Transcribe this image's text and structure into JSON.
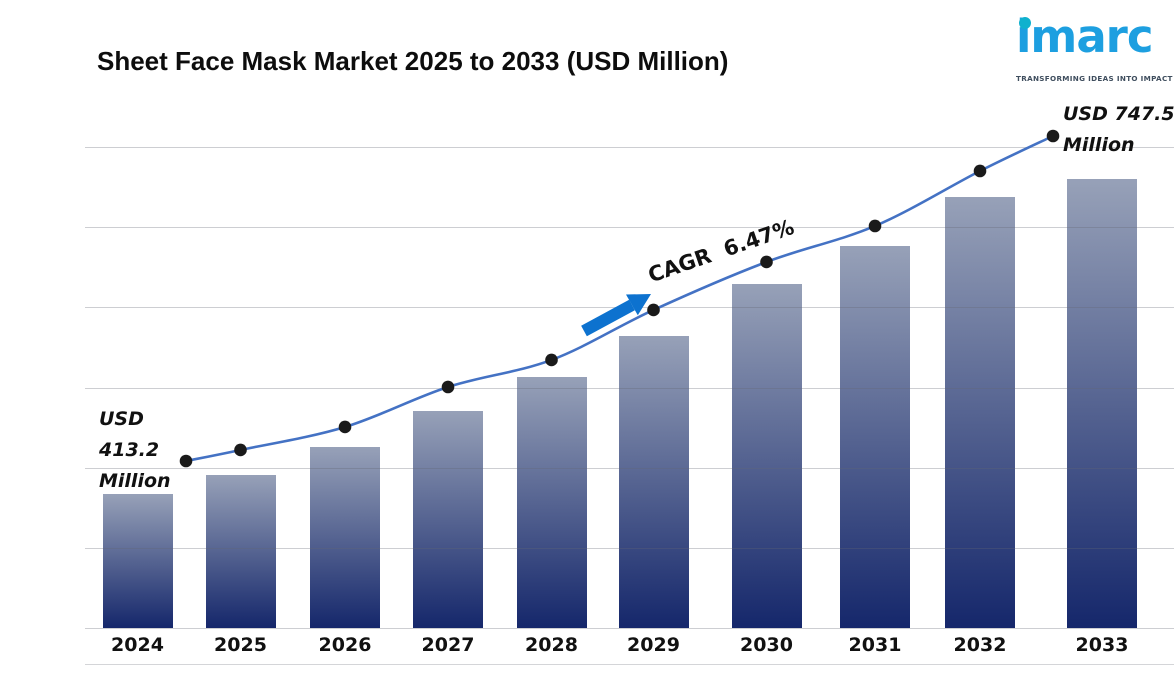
{
  "title": "Sheet Face Mask Market 2025 to 2033 (USD Million)",
  "logo": {
    "text": "imarc",
    "tagline": "TRANSFORMING IDEAS INTO IMPACT",
    "brand_color": "#1d9fe0",
    "dot_color": "#0fb1ce",
    "tagline_color": "#3f4e5e"
  },
  "annotations": {
    "start": "USD 413.2 Million",
    "end": "USD 747.5 Million",
    "cagr": "CAGR  6.47%"
  },
  "colors": {
    "bar_top": "#97a1b8",
    "bar_bottom": "#15276b",
    "line": "#4472c4",
    "marker": "#1a1a1a",
    "arrow": "#0d72cf"
  },
  "chart_data": {
    "type": "bar",
    "title": "Sheet Face Mask Market 2025 to 2033 (USD Million)",
    "categories": [
      "2024",
      "2025",
      "2026",
      "2027",
      "2028",
      "2029",
      "2030",
      "2031",
      "2032",
      "2033"
    ],
    "series": [
      {
        "name": "Market Size (USD Million)",
        "type": "bar",
        "values": [
          413.2,
          433.4,
          463.1,
          501.3,
          537.4,
          580.9,
          636.1,
          676.4,
          728.4,
          747.5
        ]
      },
      {
        "name": "Trend line",
        "type": "line",
        "values": [
          413.2,
          433.4,
          463.1,
          501.3,
          537.4,
          580.9,
          636.1,
          676.4,
          728.4,
          747.5
        ]
      }
    ],
    "unit": "USD Million",
    "cagr_percent": 6.47,
    "first_value_label": "USD 413.2 Million",
    "last_value_label": "USD 747.5 Million",
    "xlabel": "",
    "ylabel": "",
    "grid": true,
    "legend": false
  }
}
